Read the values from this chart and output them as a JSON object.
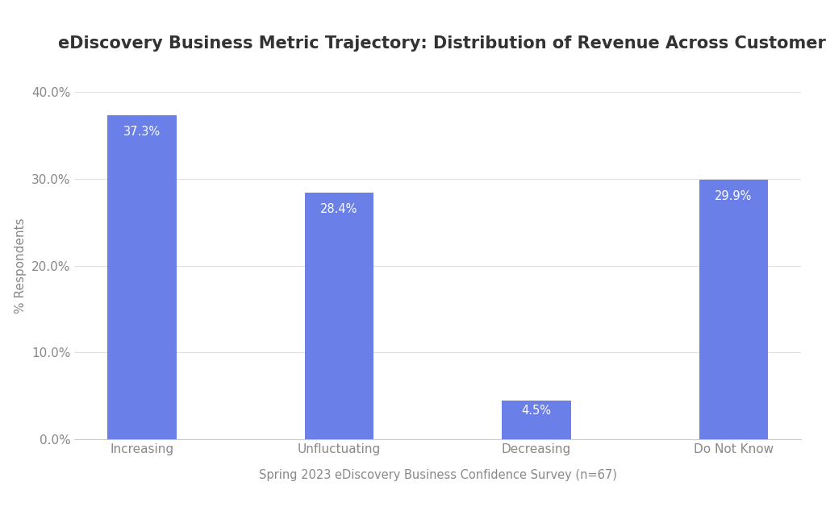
{
  "title": "eDiscovery Business Metric Trajectory: Distribution of Revenue Across Customer Base",
  "categories": [
    "Increasing",
    "Unfluctuating",
    "Decreasing",
    "Do Not Know"
  ],
  "values": [
    37.3,
    28.4,
    4.5,
    29.9
  ],
  "bar_color": "#6b7fe8",
  "ylabel": "% Respondents",
  "xlabel": "Spring 2023 eDiscovery Business Confidence Survey (n=67)",
  "ylim": [
    0,
    40
  ],
  "yticks": [
    0,
    10,
    20,
    30,
    40
  ],
  "label_color": "#ffffff",
  "title_fontsize": 15,
  "label_fontsize": 10.5,
  "tick_fontsize": 11,
  "xlabel_fontsize": 10.5,
  "ylabel_fontsize": 11,
  "background_color": "#ffffff",
  "grid_color": "#e0e0e0",
  "bar_width": 0.35
}
